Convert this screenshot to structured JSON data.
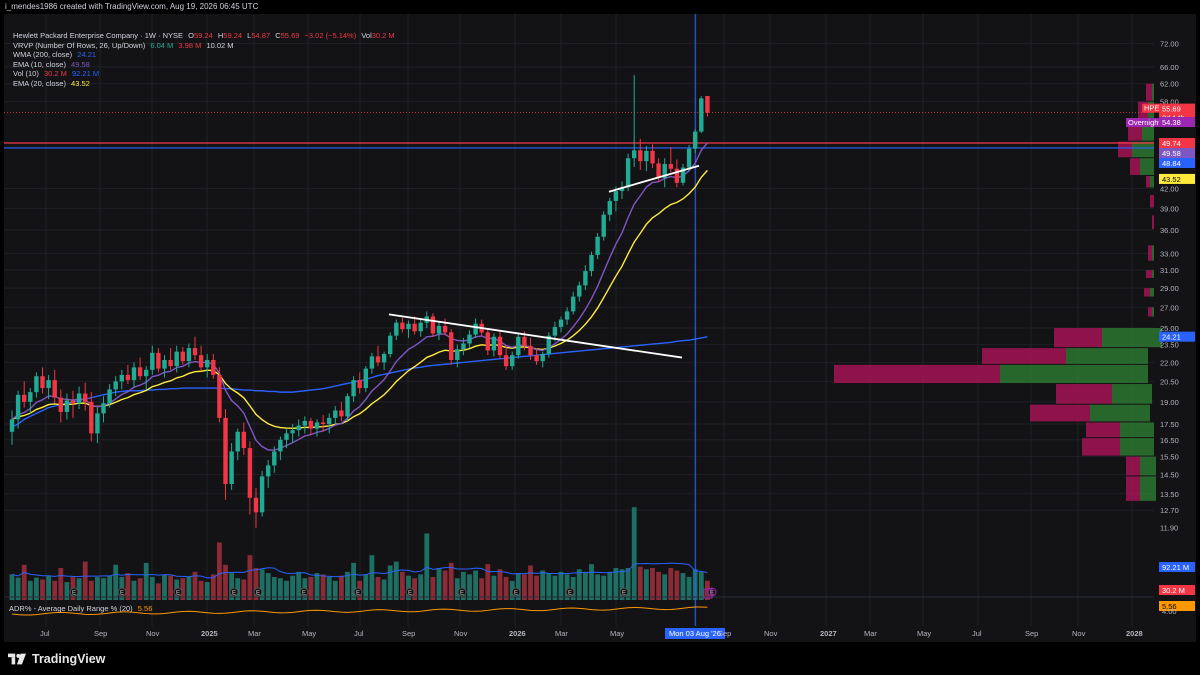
{
  "header": "i_mendes1986 created with TradingView.com, Aug 19, 2026 06:45 UTC",
  "legend": {
    "title": "Hewlett Packard Enterprise Company · 1W · NYSE",
    "ohlc": {
      "o_label": "O",
      "o": "59.24",
      "h_label": "H",
      "h": "59.24",
      "l_label": "L",
      "l": "54.87",
      "c_label": "C",
      "c": "55.69",
      "chg": "−3.02 (−5.14%)",
      "vol_label": "Vol",
      "vol": "30.2 M"
    },
    "rows": [
      {
        "label": "VRVP (Number Of Rows, 26, Up/Down)",
        "values": [
          "6.04 M",
          "3.98 M",
          "10.02 M"
        ],
        "colors": [
          "#22ab94",
          "#f23645",
          "#d1d4dc"
        ]
      },
      {
        "label": "WMA (200, close)",
        "values": [
          "24.21"
        ],
        "colors": [
          "#2962ff"
        ]
      },
      {
        "label": "EMA (10, close)",
        "values": [
          "49.58"
        ],
        "colors": [
          "#7e57c2"
        ]
      },
      {
        "label": "Vol (10)",
        "values": [
          "30.2 M",
          "92.21 M"
        ],
        "colors": [
          "#f23645",
          "#2962ff"
        ]
      },
      {
        "label": "EMA (20, close)",
        "values": [
          "43.52"
        ],
        "colors": [
          "#ffeb3b"
        ]
      }
    ]
  },
  "adr": {
    "label": "ADR% - Average Daily Range % (20)",
    "value": "5.56",
    "color": "#ff9800"
  },
  "logo_text": "TradingView",
  "colors": {
    "up": "#22ab94",
    "down": "#f23645",
    "wma": "#2962ff",
    "ema10": "#7e57c2",
    "ema20": "#ffeb3b",
    "adr": "#ff9800",
    "grid": "#1f2026",
    "bg": "#131316"
  },
  "chart_data": {
    "type": "candlestick",
    "ticker": "HPE",
    "price_axis": {
      "ticks": [
        "72.00",
        "66.00",
        "62.00",
        "58.00",
        "54.38",
        "49.74",
        "49.58",
        "48.84",
        "43.52",
        "42.00",
        "39.00",
        "36.00",
        "33.00",
        "31.00",
        "29.00",
        "27.00",
        "25.00",
        "24.21",
        "23.50",
        "22.00",
        "20.50",
        "19.00",
        "17.50",
        "16.50",
        "15.50",
        "14.50",
        "13.50",
        "12.70",
        "11.90"
      ],
      "scale": "log"
    },
    "grid_ticks": [
      72,
      66,
      62,
      58,
      42,
      39,
      36,
      33,
      31,
      29,
      27,
      25,
      23.5,
      22,
      20.5,
      19,
      17.5,
      16.5,
      15.5,
      14.5,
      13.5,
      12.7
    ],
    "price_labels": [
      {
        "label": "HPE",
        "value": "55.69",
        "extra": "2d 14h",
        "color": "#f23645"
      },
      {
        "label": "Overnight",
        "value": "54.38",
        "color": "#9c27b0"
      },
      {
        "value": "49.74",
        "color": "#f23645"
      },
      {
        "value": "49.58",
        "color": "#7e57c2"
      },
      {
        "value": "48.84",
        "color": "#2962ff"
      },
      {
        "value": "43.52",
        "color": "#ffeb3b"
      },
      {
        "value": "24.21",
        "color": "#2962ff"
      }
    ],
    "vol_labels": [
      {
        "value": "92.21 M",
        "color": "#2962ff"
      },
      {
        "value": "30.2 M",
        "color": "#f23645"
      },
      {
        "value": "5.56",
        "color": "#ff9800"
      }
    ],
    "time_axis": [
      "Jul",
      "Sep",
      "Nov",
      "2025",
      "Mar",
      "May",
      "Jul",
      "Sep",
      "Nov",
      "2026",
      "Mar",
      "May",
      "Mon 03 Aug '26",
      "Sep",
      "Nov",
      "2027",
      "Mar",
      "May",
      "Jul",
      "Sep",
      "Nov",
      "2028"
    ],
    "horizontal_lines": [
      {
        "price": 49.74,
        "color": "#f23645"
      },
      {
        "price": 48.84,
        "color": "#2962ff"
      }
    ],
    "trendlines": [
      {
        "from": {
          "date": "2025-09",
          "price": 26.3
        },
        "to": {
          "date": "2026-07",
          "price": 22.4
        }
      },
      {
        "from": {
          "date": "2026-04",
          "price": 41.5
        },
        "to": {
          "date": "2026-08",
          "price": 45.7
        }
      }
    ],
    "candles": [
      [
        17.0,
        18.4,
        16.2,
        17.8
      ],
      [
        17.8,
        19.8,
        17.2,
        19.5
      ],
      [
        19.5,
        20.5,
        18.6,
        19.0
      ],
      [
        19.0,
        20.0,
        18.2,
        19.7
      ],
      [
        19.7,
        21.2,
        19.3,
        20.9
      ],
      [
        20.9,
        21.6,
        19.6,
        20.0
      ],
      [
        20.0,
        21.0,
        19.2,
        20.6
      ],
      [
        20.6,
        21.4,
        18.9,
        19.3
      ],
      [
        19.3,
        19.9,
        17.6,
        18.3
      ],
      [
        18.3,
        19.6,
        17.8,
        19.1
      ],
      [
        19.1,
        19.8,
        17.9,
        18.9
      ],
      [
        18.9,
        20.1,
        18.5,
        19.6
      ],
      [
        19.6,
        20.4,
        18.4,
        19.0
      ],
      [
        19.0,
        19.7,
        16.4,
        16.9
      ],
      [
        16.9,
        18.6,
        16.3,
        18.2
      ],
      [
        18.2,
        19.4,
        17.6,
        18.9
      ],
      [
        18.9,
        20.3,
        18.6,
        19.9
      ],
      [
        19.9,
        20.9,
        19.4,
        20.5
      ],
      [
        20.5,
        21.4,
        19.9,
        21.0
      ],
      [
        21.0,
        21.8,
        20.3,
        20.6
      ],
      [
        20.6,
        22.0,
        20.0,
        21.6
      ],
      [
        21.6,
        22.4,
        20.6,
        20.9
      ],
      [
        20.9,
        21.7,
        19.9,
        21.4
      ],
      [
        21.4,
        23.4,
        21.0,
        22.8
      ],
      [
        22.8,
        23.2,
        21.2,
        21.5
      ],
      [
        21.5,
        22.6,
        20.8,
        22.2
      ],
      [
        22.2,
        23.2,
        21.4,
        21.7
      ],
      [
        21.7,
        23.4,
        21.2,
        22.9
      ],
      [
        22.9,
        23.3,
        21.8,
        22.1
      ],
      [
        22.1,
        23.6,
        21.6,
        23.2
      ],
      [
        23.2,
        24.2,
        22.2,
        22.6
      ],
      [
        22.6,
        23.4,
        21.3,
        21.6
      ],
      [
        21.6,
        22.7,
        20.8,
        22.2
      ],
      [
        22.2,
        22.7,
        20.7,
        21.0
      ],
      [
        21.0,
        21.6,
        17.6,
        17.9
      ],
      [
        17.9,
        18.5,
        13.2,
        14.0
      ],
      [
        14.0,
        16.3,
        13.7,
        15.8
      ],
      [
        15.8,
        17.2,
        15.3,
        17.0
      ],
      [
        17.0,
        17.6,
        15.6,
        16.0
      ],
      [
        16.0,
        16.4,
        12.5,
        13.3
      ],
      [
        13.3,
        13.8,
        11.9,
        12.6
      ],
      [
        12.6,
        14.7,
        12.4,
        14.4
      ],
      [
        14.4,
        15.3,
        13.8,
        15.0
      ],
      [
        15.0,
        16.1,
        14.6,
        15.8
      ],
      [
        15.8,
        16.7,
        15.3,
        16.5
      ],
      [
        16.5,
        17.2,
        16.0,
        16.9
      ],
      [
        16.9,
        17.5,
        16.3,
        17.1
      ],
      [
        17.1,
        17.8,
        16.7,
        17.4
      ],
      [
        17.4,
        18.0,
        16.9,
        17.7
      ],
      [
        17.7,
        17.9,
        16.8,
        17.2
      ],
      [
        17.2,
        17.8,
        16.7,
        17.6
      ],
      [
        17.6,
        18.1,
        17.0,
        17.5
      ],
      [
        17.5,
        18.2,
        16.9,
        17.9
      ],
      [
        17.9,
        18.7,
        17.5,
        18.4
      ],
      [
        18.4,
        19.0,
        17.7,
        18.0
      ],
      [
        18.0,
        19.6,
        17.7,
        19.4
      ],
      [
        19.4,
        20.9,
        19.0,
        20.6
      ],
      [
        20.6,
        21.2,
        19.6,
        20.0
      ],
      [
        20.0,
        21.7,
        19.7,
        21.5
      ],
      [
        21.5,
        22.8,
        21.1,
        22.5
      ],
      [
        22.5,
        23.4,
        21.7,
        22.0
      ],
      [
        22.0,
        22.9,
        21.4,
        22.7
      ],
      [
        22.7,
        24.6,
        22.4,
        24.3
      ],
      [
        24.3,
        25.8,
        23.9,
        25.5
      ],
      [
        25.5,
        26.0,
        24.6,
        24.9
      ],
      [
        24.9,
        25.7,
        24.1,
        25.4
      ],
      [
        25.4,
        26.1,
        24.4,
        24.7
      ],
      [
        24.7,
        25.8,
        24.2,
        25.5
      ],
      [
        25.5,
        26.6,
        25.0,
        26.1
      ],
      [
        26.1,
        26.4,
        24.2,
        24.5
      ],
      [
        24.5,
        25.6,
        23.9,
        25.2
      ],
      [
        25.2,
        25.9,
        24.3,
        24.6
      ],
      [
        24.6,
        24.9,
        21.8,
        22.2
      ],
      [
        22.2,
        23.5,
        21.6,
        23.1
      ],
      [
        23.1,
        24.1,
        22.6,
        23.6
      ],
      [
        23.6,
        24.8,
        23.2,
        24.4
      ],
      [
        24.4,
        25.9,
        24.1,
        25.4
      ],
      [
        25.4,
        25.8,
        24.3,
        24.6
      ],
      [
        24.6,
        25.0,
        22.6,
        23.0
      ],
      [
        23.0,
        24.5,
        22.5,
        24.2
      ],
      [
        24.2,
        24.7,
        22.3,
        22.6
      ],
      [
        22.6,
        23.4,
        21.4,
        21.7
      ],
      [
        21.7,
        22.9,
        21.4,
        22.6
      ],
      [
        22.6,
        24.6,
        22.3,
        24.2
      ],
      [
        24.2,
        24.7,
        23.0,
        23.4
      ],
      [
        23.4,
        24.1,
        22.2,
        22.6
      ],
      [
        22.6,
        23.2,
        21.8,
        22.1
      ],
      [
        22.1,
        22.9,
        21.6,
        22.7
      ],
      [
        22.7,
        24.6,
        22.4,
        24.3
      ],
      [
        24.3,
        25.6,
        23.8,
        25.1
      ],
      [
        25.1,
        26.1,
        24.6,
        25.8
      ],
      [
        25.8,
        27.0,
        25.3,
        26.6
      ],
      [
        26.6,
        28.6,
        26.3,
        28.1
      ],
      [
        28.1,
        29.7,
        27.6,
        29.3
      ],
      [
        29.3,
        31.6,
        28.8,
        30.9
      ],
      [
        30.9,
        33.2,
        30.3,
        32.8
      ],
      [
        32.8,
        35.6,
        32.3,
        35.1
      ],
      [
        35.1,
        38.6,
        34.6,
        38.1
      ],
      [
        38.1,
        40.6,
        37.2,
        40.1
      ],
      [
        40.1,
        42.3,
        38.6,
        41.6
      ],
      [
        41.6,
        43.1,
        40.4,
        42.2
      ],
      [
        42.2,
        47.8,
        41.6,
        47.0
      ],
      [
        47.0,
        64.0,
        45.5,
        48.4
      ],
      [
        48.4,
        50.5,
        45.0,
        46.5
      ],
      [
        46.5,
        49.2,
        44.8,
        48.3
      ],
      [
        48.3,
        49.5,
        45.3,
        46.1
      ],
      [
        46.1,
        47.0,
        43.0,
        43.7
      ],
      [
        43.7,
        47.0,
        42.2,
        46.0
      ],
      [
        46.0,
        49.0,
        44.6,
        45.2
      ],
      [
        45.2,
        46.8,
        42.2,
        42.9
      ],
      [
        42.9,
        46.0,
        42.5,
        45.4
      ],
      [
        45.4,
        49.4,
        44.8,
        48.7
      ],
      [
        48.7,
        52.4,
        47.9,
        51.9
      ],
      [
        51.9,
        59.2,
        51.6,
        58.7
      ],
      [
        59.24,
        59.24,
        54.87,
        55.69
      ]
    ],
    "volumes_m": [
      40,
      35,
      55,
      30,
      35,
      32,
      38,
      30,
      50,
      28,
      36,
      34,
      60,
      30,
      36,
      34,
      38,
      55,
      36,
      42,
      30,
      34,
      58,
      36,
      26,
      40,
      38,
      32,
      34,
      36,
      44,
      30,
      28,
      40,
      90,
      55,
      42,
      34,
      32,
      70,
      50,
      48,
      42,
      36,
      34,
      30,
      38,
      44,
      34,
      36,
      42,
      40,
      36,
      30,
      38,
      44,
      58,
      30,
      40,
      70,
      36,
      32,
      54,
      60,
      44,
      38,
      34,
      40,
      104,
      36,
      50,
      46,
      58,
      34,
      44,
      40,
      46,
      34,
      56,
      38,
      48,
      36,
      30,
      42,
      40,
      54,
      38,
      46,
      42,
      38,
      44,
      40,
      36,
      48,
      44,
      56,
      40,
      38,
      44,
      50,
      48,
      50,
      145,
      52,
      48,
      50,
      44,
      40,
      50,
      46,
      42,
      36,
      48,
      44,
      30
    ],
    "wma200": [
      17.3,
      17.5,
      17.8,
      18.0,
      18.2,
      18.4,
      18.6,
      18.7,
      18.8,
      18.9,
      19.0,
      19.1,
      19.2,
      19.3,
      19.4,
      19.5,
      19.6,
      19.7,
      19.75,
      19.8,
      19.8,
      19.8,
      19.85,
      19.85,
      19.9,
      19.9,
      19.95,
      19.95,
      20.0,
      20.0,
      20.0,
      20.0,
      20.0,
      20.0,
      20.0,
      19.95,
      19.95,
      19.9,
      19.85,
      19.85,
      19.8,
      19.8,
      19.75,
      19.75,
      19.7,
      19.7,
      19.7,
      19.75,
      19.8,
      19.85,
      19.9,
      19.95,
      20.05,
      20.15,
      20.25,
      20.35,
      20.45,
      20.55,
      20.65,
      20.8,
      20.95,
      21.05,
      21.15,
      21.25,
      21.35,
      21.45,
      21.55,
      21.6,
      21.7,
      21.75,
      21.8,
      21.85,
      21.9,
      21.95,
      22.0,
      22.05,
      22.1,
      22.15,
      22.2,
      22.25,
      22.3,
      22.35,
      22.4,
      22.45,
      22.5,
      22.55,
      22.6,
      22.65,
      22.7,
      22.75,
      22.8,
      22.85,
      22.9,
      22.95,
      23.0,
      23.05,
      23.1,
      23.15,
      23.2,
      23.25,
      23.3,
      23.35,
      23.4,
      23.45,
      23.5,
      23.55,
      23.6,
      23.65,
      23.7,
      23.8,
      23.85,
      23.9,
      24.0,
      24.1,
      24.21
    ]
  }
}
